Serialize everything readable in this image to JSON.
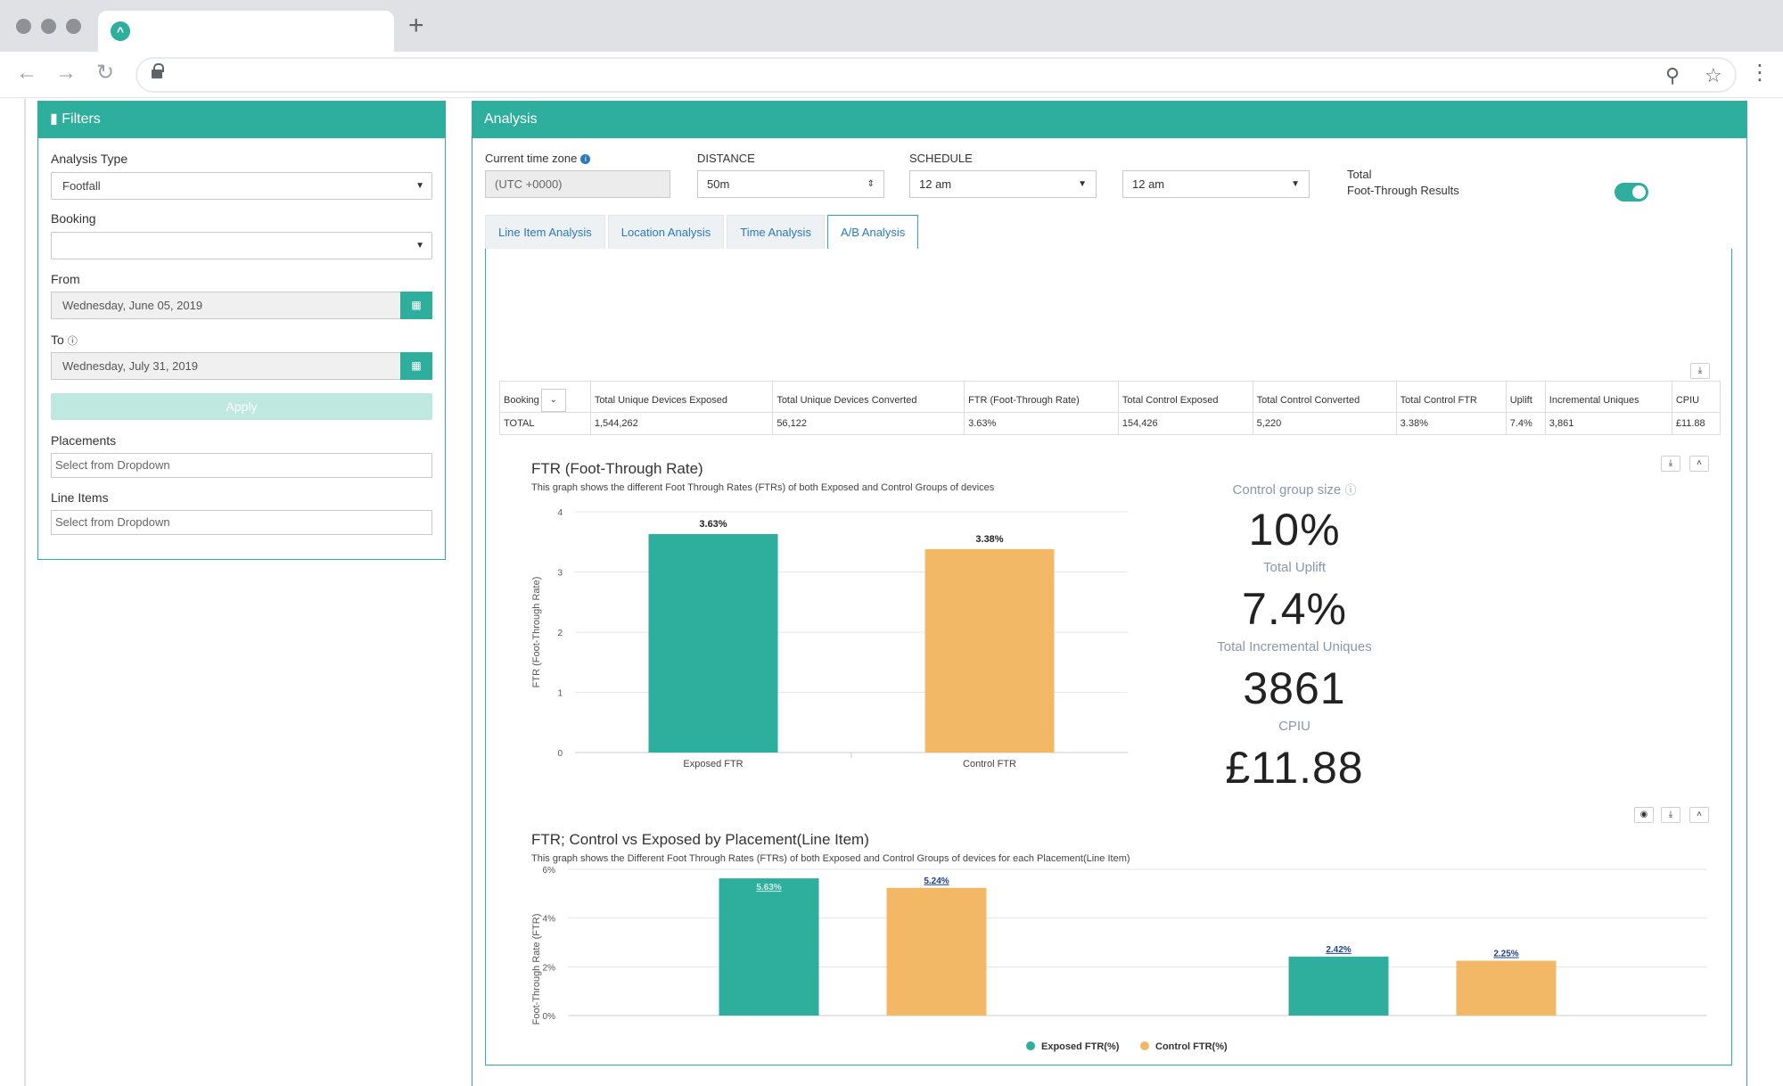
{
  "filters": {
    "title": "Filters",
    "analysis_type_label": "Analysis Type",
    "analysis_type_value": "Footfall",
    "booking_label": "Booking",
    "booking_value": "",
    "from_label": "From",
    "from_value": "Wednesday, June 05, 2019",
    "to_label": "To",
    "to_value": "Wednesday, July 31, 2019",
    "apply_label": "Apply",
    "placements_label": "Placements",
    "placements_placeholder": "Select from Dropdown",
    "line_items_label": "Line Items",
    "line_items_placeholder": "Select from Dropdown"
  },
  "analysis": {
    "title": "Analysis",
    "timezone_label": "Current time zone",
    "timezone_value": "(UTC +0000)",
    "distance_label": "DISTANCE",
    "distance_value": "50m",
    "schedule_label": "SCHEDULE",
    "schedule_from": "12 am",
    "schedule_to": "12 am",
    "total_label_1": "Total",
    "total_label_2": "Foot-Through Results",
    "tabs": [
      {
        "label": "Line Item Analysis"
      },
      {
        "label": "Location Analysis"
      },
      {
        "label": "Time Analysis"
      },
      {
        "label": "A/B Analysis"
      }
    ]
  },
  "summary_table": {
    "headers": [
      "Booking",
      "Total Unique Devices Exposed",
      "Total Unique Devices Converted",
      "FTR (Foot-Through Rate)",
      "Total Control Exposed",
      "Total Control Converted",
      "Total Control FTR",
      "Uplift",
      "Incremental Uniques",
      "CPIU"
    ],
    "row": [
      "TOTAL",
      "1,544,262",
      "56,122",
      "3.63%",
      "154,426",
      "5,220",
      "3.38%",
      "7.4%",
      "3,861",
      "£11.88"
    ]
  },
  "kpis": {
    "control_group_label": "Control group size",
    "control_group_value": "10%",
    "uplift_label": "Total Uplift",
    "uplift_value": "7.4%",
    "incremental_label": "Total Incremental Uniques",
    "incremental_value": "3861",
    "cpiu_label": "CPIU",
    "cpiu_value": "£11.88"
  },
  "chart_data": [
    {
      "type": "bar",
      "title": "FTR (Foot-Through Rate)",
      "subtitle": "This graph shows the different Foot Through Rates (FTRs) of both Exposed and Control Groups of devices",
      "ylabel": "FTR (Foot-Through Rate)",
      "xlabel": "",
      "categories": [
        "Exposed FTR",
        "Control FTR"
      ],
      "values": [
        3.63,
        3.38
      ],
      "data_labels": [
        "3.63%",
        "3.38%"
      ],
      "colors": [
        "#2eae9c",
        "#f2b866"
      ],
      "ylim": [
        0,
        4
      ],
      "yticks": [
        "0",
        "1",
        "2",
        "3",
        "4"
      ],
      "grid": true
    },
    {
      "type": "bar",
      "title": "FTR; Control vs Exposed by Placement(Line Item)",
      "subtitle": "This graph shows the Different Foot Through Rates (FTRs) of both Exposed and Control Groups of devices for each Placement(Line Item)",
      "ylabel": "Foot-Through Rate (FTR)",
      "xlabel": "",
      "groups": 2,
      "series": [
        {
          "name": "Exposed FTR(%)",
          "color": "#2eae9c",
          "values": [
            5.63,
            2.42
          ],
          "data_labels": [
            "5.63%",
            "2.42%"
          ]
        },
        {
          "name": "Control FTR(%)",
          "color": "#f2b866",
          "values": [
            5.24,
            2.25
          ],
          "data_labels": [
            "5.24%",
            "2.25%"
          ]
        }
      ],
      "ylim": [
        0,
        6
      ],
      "yticks": [
        "0%",
        "2%",
        "4%",
        "6%"
      ],
      "legend": "bottom",
      "grid": true
    }
  ]
}
